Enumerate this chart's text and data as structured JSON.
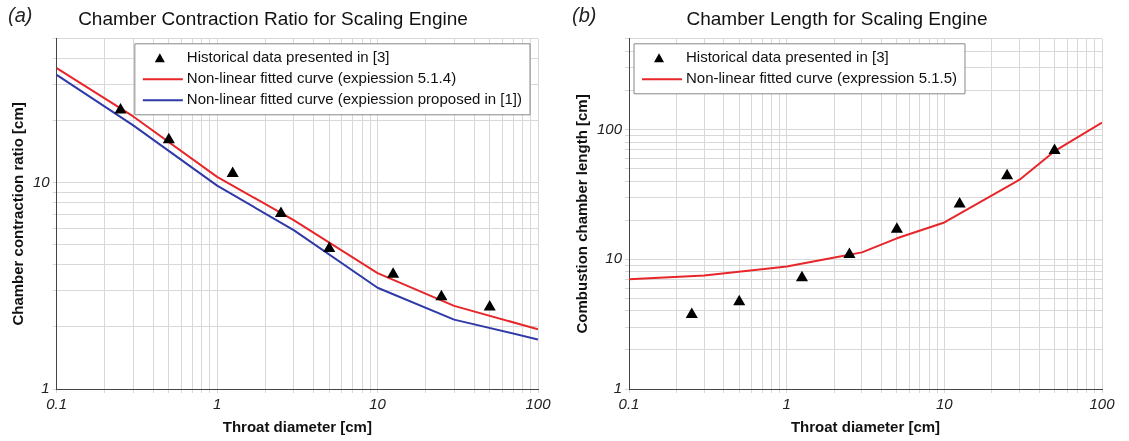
{
  "chart_data": [
    {
      "type": "line",
      "title": "Chamber Contraction Ratio for Scaling Engine",
      "xlabel": "Throat diameter [cm]",
      "ylabel": "Chamber contraction ratio [cm]",
      "annotations": [
        "(a)"
      ],
      "log": "xy",
      "grid": true,
      "legend": "top right",
      "xlim": [
        0.1,
        100
      ],
      "xticks": [
        0.1,
        {
          "value": 0.2,
          "label": null
        },
        {
          "value": 0.3,
          "label": null
        },
        {
          "value": 0.4,
          "label": null
        },
        {
          "value": 0.5,
          "label": null
        },
        {
          "value": 0.6,
          "label": null
        },
        {
          "value": 0.7,
          "label": null
        },
        {
          "value": 0.8,
          "label": null
        },
        {
          "value": 0.9,
          "label": null
        },
        1,
        {
          "value": 2,
          "label": null
        },
        {
          "value": 3,
          "label": null
        },
        {
          "value": 4,
          "label": null
        },
        {
          "value": 5,
          "label": null
        },
        {
          "value": 6,
          "label": null
        },
        {
          "value": 7,
          "label": null
        },
        {
          "value": 8,
          "label": null
        },
        {
          "value": 9,
          "label": null
        },
        10,
        {
          "value": 20,
          "label": null
        },
        {
          "value": 30,
          "label": null
        },
        {
          "value": 40,
          "label": null
        },
        {
          "value": 50,
          "label": null
        },
        {
          "value": 60,
          "label": null
        },
        {
          "value": 70,
          "label": null
        },
        {
          "value": 80,
          "label": null
        },
        {
          "value": 90,
          "label": null
        },
        100
      ],
      "ylim": [
        1,
        50
      ],
      "yticks": [
        1,
        {
          "value": 2,
          "label": null
        },
        {
          "value": 3,
          "label": null
        },
        {
          "value": 4,
          "label": null
        },
        {
          "value": 5,
          "label": null
        },
        {
          "value": 6,
          "label": null
        },
        {
          "value": 7,
          "label": null
        },
        {
          "value": 8,
          "label": null
        },
        {
          "value": 9,
          "label": null
        },
        10,
        {
          "value": 20,
          "label": null
        },
        {
          "value": 30,
          "label": null
        },
        {
          "value": 40,
          "label": null
        },
        {
          "value": 50,
          "label": null
        }
      ],
      "series": [
        {
          "name": "Historical data presented in [3]",
          "type": "scatter",
          "marker": "triangle",
          "color": "#000000",
          "x": [
            0.25,
            0.5,
            1.25,
            2.5,
            5,
            12.5,
            25,
            50
          ],
          "values": [
            22.6,
            16.2,
            11.1,
            7.1,
            4.8,
            3.6,
            2.8,
            2.5
          ]
        },
        {
          "name": "Non-linear fitted curve (expiession 5.1.4)",
          "type": "line",
          "marker": "none",
          "color": "#e8262a",
          "x": [
            0.1,
            0.3,
            1,
            3,
            10,
            30,
            100
          ],
          "values": [
            36,
            21,
            10.7,
            6.6,
            3.65,
            2.53,
            1.95
          ]
        },
        {
          "name": "Non-linear fitted curve (expiession proposed in [1])",
          "type": "line",
          "marker": "none",
          "color": "#2f3aa8",
          "x": [
            0.1,
            0.3,
            1,
            3,
            10,
            30,
            100
          ],
          "values": [
            33.4,
            19,
            9.7,
            5.9,
            3.1,
            2.17,
            1.74
          ]
        }
      ]
    },
    {
      "type": "line",
      "title": "Chamber Length for Scaling Engine",
      "xlabel": "Throat diameter [cm]",
      "ylabel": "Combustion chamber length [cm]",
      "annotations": [
        "(b)"
      ],
      "log": "xy",
      "grid": true,
      "legend": "top left",
      "xlim": [
        0.1,
        100
      ],
      "xticks": [
        0.1,
        {
          "value": 0.2,
          "label": null
        },
        {
          "value": 0.3,
          "label": null
        },
        {
          "value": 0.4,
          "label": null
        },
        {
          "value": 0.5,
          "label": null
        },
        {
          "value": 0.6,
          "label": null
        },
        {
          "value": 0.7,
          "label": null
        },
        {
          "value": 0.8,
          "label": null
        },
        {
          "value": 0.9,
          "label": null
        },
        1,
        {
          "value": 2,
          "label": null
        },
        {
          "value": 3,
          "label": null
        },
        {
          "value": 4,
          "label": null
        },
        {
          "value": 5,
          "label": null
        },
        {
          "value": 6,
          "label": null
        },
        {
          "value": 7,
          "label": null
        },
        {
          "value": 8,
          "label": null
        },
        {
          "value": 9,
          "label": null
        },
        10,
        {
          "value": 20,
          "label": null
        },
        {
          "value": 30,
          "label": null
        },
        {
          "value": 40,
          "label": null
        },
        {
          "value": 50,
          "label": null
        },
        {
          "value": 60,
          "label": null
        },
        {
          "value": 70,
          "label": null
        },
        {
          "value": 80,
          "label": null
        },
        {
          "value": 90,
          "label": null
        },
        100
      ],
      "ylim": [
        1,
        500
      ],
      "yticks": [
        1,
        {
          "value": 2,
          "label": null
        },
        {
          "value": 3,
          "label": null
        },
        {
          "value": 4,
          "label": null
        },
        {
          "value": 5,
          "label": null
        },
        {
          "value": 6,
          "label": null
        },
        {
          "value": 7,
          "label": null
        },
        {
          "value": 8,
          "label": null
        },
        {
          "value": 9,
          "label": null
        },
        10,
        {
          "value": 20,
          "label": null
        },
        {
          "value": 30,
          "label": null
        },
        {
          "value": 40,
          "label": null
        },
        {
          "value": 50,
          "label": null
        },
        {
          "value": 60,
          "label": null
        },
        {
          "value": 70,
          "label": null
        },
        {
          "value": 80,
          "label": null
        },
        {
          "value": 90,
          "label": null
        },
        100,
        {
          "value": 200,
          "label": null
        },
        {
          "value": 300,
          "label": null
        },
        {
          "value": 400,
          "label": null
        },
        {
          "value": 500,
          "label": null
        }
      ],
      "series": [
        {
          "name": "Historical data presented in [3]",
          "type": "scatter",
          "marker": "triangle",
          "color": "#000000",
          "x": [
            0.25,
            0.5,
            1.25,
            2.5,
            5,
            12.5,
            25,
            50
          ],
          "values": [
            3.75,
            4.7,
            7.2,
            10.9,
            17,
            26.7,
            44,
            69
          ]
        },
        {
          "name": "Non-linear fitted curve (expression 5.1.5)",
          "type": "line",
          "marker": "none",
          "color": "#e8262a",
          "x": [
            0.1,
            0.3,
            1,
            3,
            5,
            10,
            30,
            50,
            100
          ],
          "values": [
            7.0,
            7.5,
            8.8,
            11.3,
            14.5,
            19.2,
            41,
            68,
            113
          ]
        }
      ]
    }
  ]
}
